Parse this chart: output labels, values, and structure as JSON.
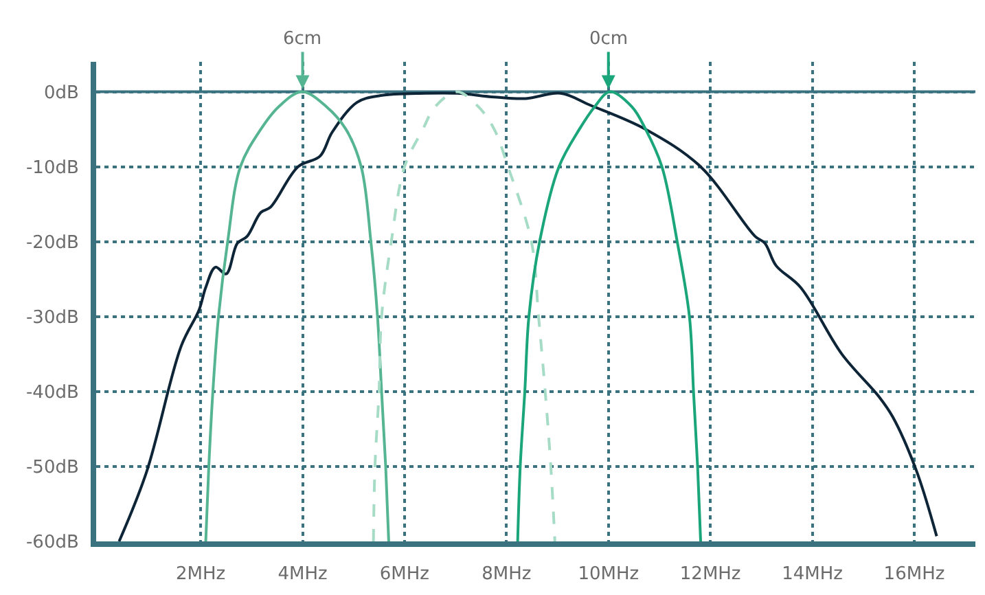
{
  "chart_data": {
    "type": "line",
    "xlim": [
      -0.05,
      17.2
    ],
    "ylim": [
      -60,
      4
    ],
    "xticks": [
      {
        "value": 2,
        "label": "2MHz"
      },
      {
        "value": 4,
        "label": "4MHz"
      },
      {
        "value": 6,
        "label": "6MHz"
      },
      {
        "value": 8,
        "label": "8MHz"
      },
      {
        "value": 10,
        "label": "10MHz"
      },
      {
        "value": 12,
        "label": "12MHz"
      },
      {
        "value": 14,
        "label": "14MHz"
      },
      {
        "value": 16,
        "label": "16MHz"
      }
    ],
    "yticks": [
      {
        "value": 0,
        "label": "0dB"
      },
      {
        "value": -10,
        "label": "-10dB"
      },
      {
        "value": -20,
        "label": "-20dB"
      },
      {
        "value": -30,
        "label": "-30dB"
      },
      {
        "value": -40,
        "label": "-40dB"
      },
      {
        "value": -50,
        "label": "-50dB"
      },
      {
        "value": -60,
        "label": "-60dB"
      }
    ],
    "grid": true,
    "marker": "none",
    "line_style": "solid",
    "ref_lines": [
      {
        "axis": "y",
        "value": 0,
        "color": "#3a7280"
      }
    ],
    "annotations": [
      {
        "text": "6cm",
        "x": 4,
        "y": 0
      },
      {
        "text": "0cm",
        "x": 10,
        "y": 0
      }
    ],
    "series": [
      {
        "color": "#0e2538",
        "x": [
          0.4,
          0.94,
          1.62,
          1.97,
          2.1,
          2.29,
          2.5,
          2.72,
          2.91,
          3.18,
          3.37,
          3.91,
          4.34,
          4.58,
          5.07,
          5.53,
          6.41,
          7.03,
          7.76,
          8.38,
          9.06,
          9.65,
          10.73,
          11.81,
          12.88,
          13.07,
          13.29,
          13.77,
          14.58,
          15.31,
          15.58,
          16.04,
          16.44
        ],
        "values": [
          -60,
          -50.7,
          -33.9,
          -29.1,
          -26.1,
          -23.4,
          -24.3,
          -20.2,
          -19.3,
          -16.1,
          -15.4,
          -10,
          -8.6,
          -5.4,
          -1.4,
          -0.5,
          -0.2,
          -0.2,
          -0.7,
          -0.9,
          -0.2,
          -1.8,
          -5,
          -10,
          -19.3,
          -20.2,
          -23.2,
          -26.1,
          -35,
          -40.7,
          -43.4,
          -50.5,
          -59.3
        ]
      },
      {
        "color": "#55b592",
        "x": [
          2.1,
          2.16,
          2.24,
          2.35,
          2.53,
          2.78,
          3.18,
          3.53,
          3.99,
          4.47,
          4.85,
          5.15,
          5.34,
          5.47,
          5.55,
          5.63,
          5.69
        ],
        "values": [
          -60,
          -50,
          -40,
          -30,
          -20,
          -10,
          -5,
          -2,
          0,
          -2,
          -5,
          -10,
          -20,
          -30,
          -40,
          -50,
          -60
        ]
      },
      {
        "color": "#a6dcc6",
        "line_style": "dashed",
        "x": [
          5.39,
          5.42,
          5.5,
          5.55,
          5.74,
          6.0,
          6.36,
          6.6,
          7.03,
          7.45,
          7.76,
          8.03,
          8.49,
          8.63,
          8.76,
          8.87,
          8.95
        ],
        "values": [
          -60,
          -50,
          -40,
          -30,
          -20,
          -10,
          -5,
          -2,
          0,
          -2,
          -5,
          -10,
          -20,
          -30,
          -40,
          -50,
          -60
        ]
      },
      {
        "color": "#1ba57a",
        "x": [
          8.22,
          8.27,
          8.36,
          8.44,
          8.65,
          9.03,
          9.43,
          9.73,
          10.03,
          10.46,
          10.73,
          11.05,
          11.35,
          11.59,
          11.67,
          11.75,
          11.81
        ],
        "values": [
          -60,
          -50,
          -40,
          -30,
          -20,
          -10,
          -5,
          -2,
          0,
          -2,
          -5,
          -10,
          -20,
          -30,
          -40,
          -50,
          -60
        ]
      }
    ]
  }
}
